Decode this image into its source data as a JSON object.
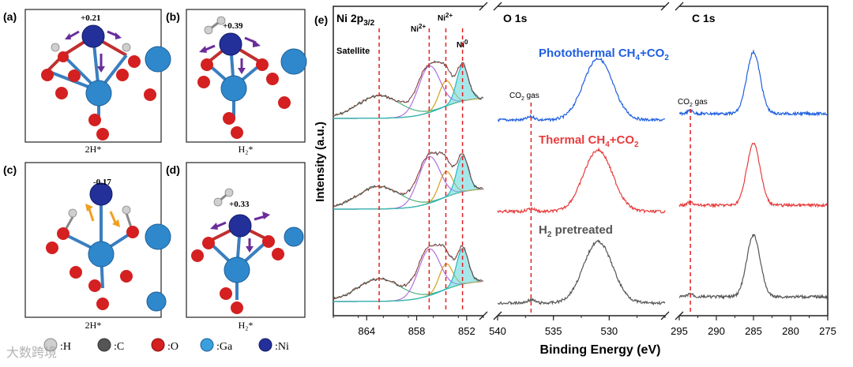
{
  "left_panels": {
    "a": {
      "label": "(a)",
      "charge": "+0.21",
      "caption": "2H*"
    },
    "b": {
      "label": "(b)",
      "charge": "+0.39",
      "caption": "H₂*"
    },
    "c": {
      "label": "(c)",
      "charge": "-0.17",
      "caption": "2H*"
    },
    "d": {
      "label": "(d)",
      "charge": "+0.33",
      "caption": "H₂*"
    },
    "legend": [
      {
        "symbol": ":H",
        "color": "#cfcfcf"
      },
      {
        "symbol": ":C",
        "color": "#555555"
      },
      {
        "symbol": ":O",
        "color": "#d42020"
      },
      {
        "symbol": ":Ga",
        "color": "#3aa0dc"
      },
      {
        "symbol": ":Ni",
        "color": "#23309a"
      }
    ]
  },
  "panel_e_label": "(e)",
  "watermark": "大数跨境",
  "chart_data": {
    "type": "line",
    "ylabel": "Intensity (a.u.)",
    "xlabel": "Binding Energy (eV)",
    "subplots": [
      {
        "title": "Ni 2p3/2",
        "title_main": "Ni 2p",
        "title_sub": "3/2",
        "xlim": [
          868,
          850
        ],
        "ticks": [
          864,
          858,
          852
        ]
      },
      {
        "title": "O 1s",
        "xlim": [
          540,
          525
        ],
        "ticks": [
          540,
          535,
          530
        ]
      },
      {
        "title": "C 1s",
        "xlim": [
          295,
          275
        ],
        "ticks": [
          295,
          290,
          285,
          280,
          275
        ]
      }
    ],
    "series": [
      {
        "name": "Photothermal CH4+CO2",
        "color": "#1f5fe0",
        "label_parts": [
          "Photothermal  CH",
          "4",
          "+CO",
          "2"
        ]
      },
      {
        "name": "Thermal CH4+CO2",
        "color": "#e83c3c",
        "label_parts": [
          "Thermal  CH",
          "4",
          "+CO",
          "2"
        ]
      },
      {
        "name": "H2 pretreated",
        "color": "#555555",
        "label_parts": [
          "H",
          "2",
          " pretreated"
        ]
      }
    ],
    "dashed_lines": {
      "ni": [
        862.5,
        856.5,
        854.5,
        852.5
      ],
      "o": 537,
      "c": 293.5
    },
    "annotations": {
      "satellite": "Satellite",
      "ni2_a": "Ni2+",
      "ni2_b": "Ni2+",
      "ni0": "Ni0",
      "co2_gas_o": "CO2 gas",
      "co2_gas_c": "CO2 gas"
    },
    "ni_peaks": {
      "satellite": 862.5,
      "ni2_main": 856.5,
      "ni2_second": 854.5,
      "ni0": 852.5
    },
    "o1s_peak": 531,
    "c1s_peak": 285
  }
}
